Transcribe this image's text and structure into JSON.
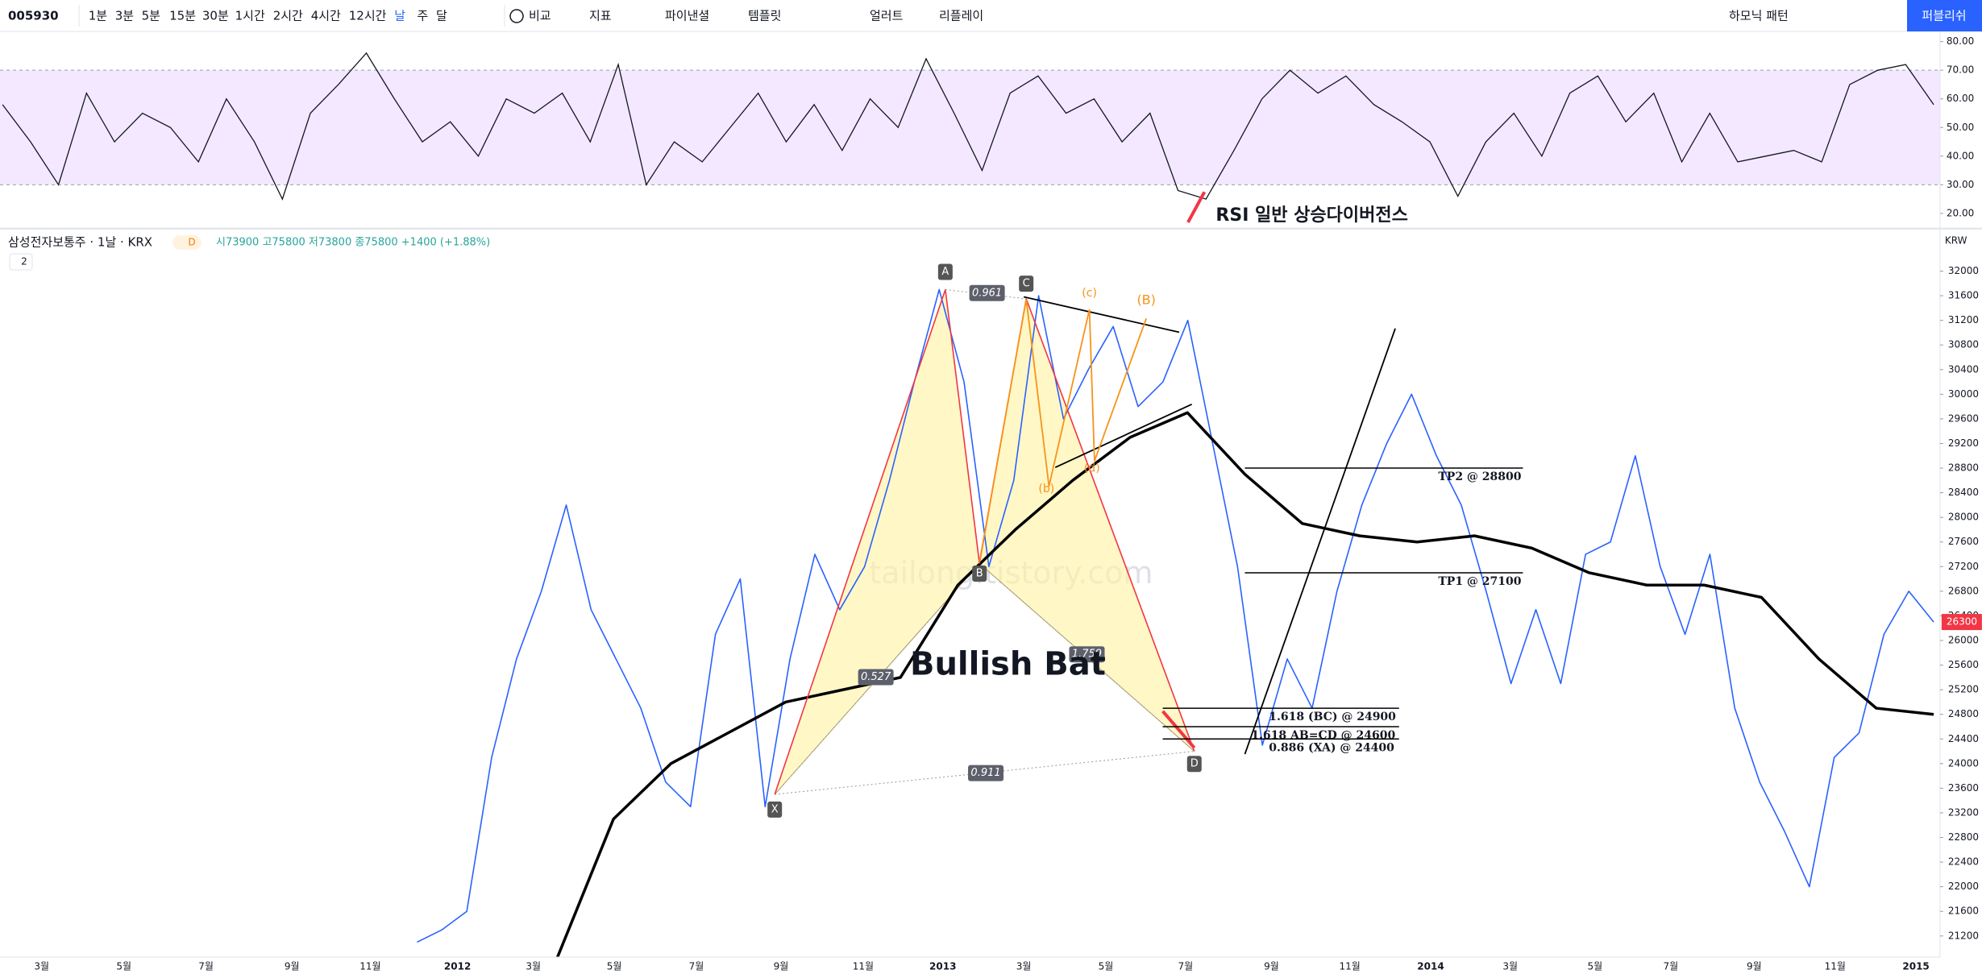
{
  "toolbar": {
    "symbol": "005930",
    "intervals": [
      "1분",
      "3분",
      "5분",
      "15분",
      "30분",
      "1시간",
      "2시간",
      "4시간",
      "12시간",
      "날",
      "주",
      "달"
    ],
    "compare": "비교",
    "indicators": "지표",
    "financials": "파이낸셜",
    "templates": "템플릿",
    "alert": "얼러트",
    "replay": "리플레이",
    "harmonic": "하모닉 패턴",
    "publish": "퍼블리쉬"
  },
  "legend": {
    "title": "삼성전자보통주 · 1날 · KRX",
    "badge": "D",
    "ohlc": "시73900 고75800 저73800 종75800 +1400 (+1.88%)",
    "collapse": "2"
  },
  "rsi_pane": {
    "ylim": [
      16,
      83.5
    ],
    "band": [
      30,
      70
    ],
    "yticks": [
      {
        "value": 80,
        "label": "80.00"
      },
      {
        "value": 70,
        "label": "70.00"
      },
      {
        "value": 60,
        "label": "60.00"
      },
      {
        "value": 50,
        "label": "50.00"
      },
      {
        "value": 40,
        "label": "40.00"
      },
      {
        "value": 30,
        "label": "30.00"
      },
      {
        "value": 20,
        "label": "20.00"
      }
    ],
    "color": "#131722",
    "values": [
      58,
      45,
      30,
      62,
      45,
      55,
      50,
      38,
      60,
      45,
      25,
      55,
      65,
      76,
      60,
      45,
      52,
      40,
      60,
      55,
      62,
      45,
      72,
      30,
      45,
      38,
      50,
      62,
      45,
      58,
      42,
      60,
      50,
      74,
      55,
      35,
      62,
      68,
      55,
      60,
      45,
      55,
      28,
      25,
      42,
      60,
      70,
      62,
      68,
      58,
      52,
      45,
      26,
      45,
      55,
      40,
      62,
      68,
      52,
      62,
      38,
      55,
      38,
      40,
      42,
      38,
      65,
      70,
      72,
      58
    ],
    "annotation": "RSI 일반 상승다이버전스"
  },
  "price_pane": {
    "ylim": [
      20850,
      32300
    ],
    "currency": "KRW",
    "last_price": 26300,
    "watermark": "tailong.tistory.com",
    "yticks": [
      32000,
      31600,
      31200,
      30800,
      30400,
      30000,
      29600,
      29200,
      28800,
      28400,
      28000,
      27600,
      27200,
      26800,
      26400,
      26000,
      25600,
      25200,
      24800,
      24400,
      24000,
      23600,
      23200,
      22800,
      22400,
      22000,
      21600,
      21200
    ],
    "series": [
      {
        "color": "#2962ff",
        "values": [
          21100,
          21300,
          21600,
          24100,
          25700,
          26800,
          28200,
          26500,
          25700,
          24900,
          23700,
          23300,
          26100,
          27000,
          23300,
          25700,
          27400,
          26500,
          27200,
          28600,
          30200,
          31700,
          30200,
          27200,
          28600,
          31600,
          29600,
          30400,
          31100,
          29800,
          30200,
          31200,
          29200,
          27200,
          24300,
          25700,
          24900,
          26800,
          28200,
          29200,
          30000,
          29000,
          28200,
          26800,
          25300,
          26500,
          25300,
          27400,
          27600,
          29000,
          27200,
          26100,
          27400,
          24900,
          23700,
          22900,
          22000,
          24100,
          24500,
          26100,
          26800,
          26300
        ]
      },
      {
        "color": "#000000",
        "values": [
          20800,
          23100,
          24000,
          24500,
          25000,
          25200,
          25400,
          26900,
          27800,
          28600,
          29300,
          29700,
          28700,
          27900,
          27700,
          27600,
          27700,
          27500,
          27100,
          26900,
          26900,
          26700,
          25700,
          24900,
          24800
        ]
      }
    ],
    "pattern": {
      "name": "Bullish Bat",
      "points": [
        {
          "label": "X",
          "value": 23500
        },
        {
          "label": "A",
          "value": 31700
        },
        {
          "label": "B",
          "value": 27250
        },
        {
          "label": "C",
          "value": 31550
        },
        {
          "label": "D",
          "value": 24200
        }
      ],
      "ratios": [
        0.961,
        0.527,
        1.759,
        0.911
      ],
      "sub_labels": [
        "(c)",
        "(B)",
        "(b)",
        "(d)"
      ]
    },
    "levels": [
      {
        "label": "TP2 @ 28800",
        "value": 28800
      },
      {
        "label": "TP1 @ 27100",
        "value": 27100
      },
      {
        "label": "1.618 (BC) @ 24900",
        "value": 24900
      },
      {
        "label": "1.618 AB=CD @ 24600",
        "value": 24600
      },
      {
        "label": "0.886 (XA) @ 24400",
        "value": 24400
      }
    ]
  },
  "xaxis": {
    "labels": [
      "3월",
      "5월",
      "7월",
      "9월",
      "11월",
      "2012",
      "3월",
      "5월",
      "7월",
      "9월",
      "11월",
      "2013",
      "3월",
      "5월",
      "7월",
      "9월",
      "11월",
      "2014",
      "3월",
      "5월",
      "7월",
      "9월",
      "11월",
      "2015"
    ]
  }
}
